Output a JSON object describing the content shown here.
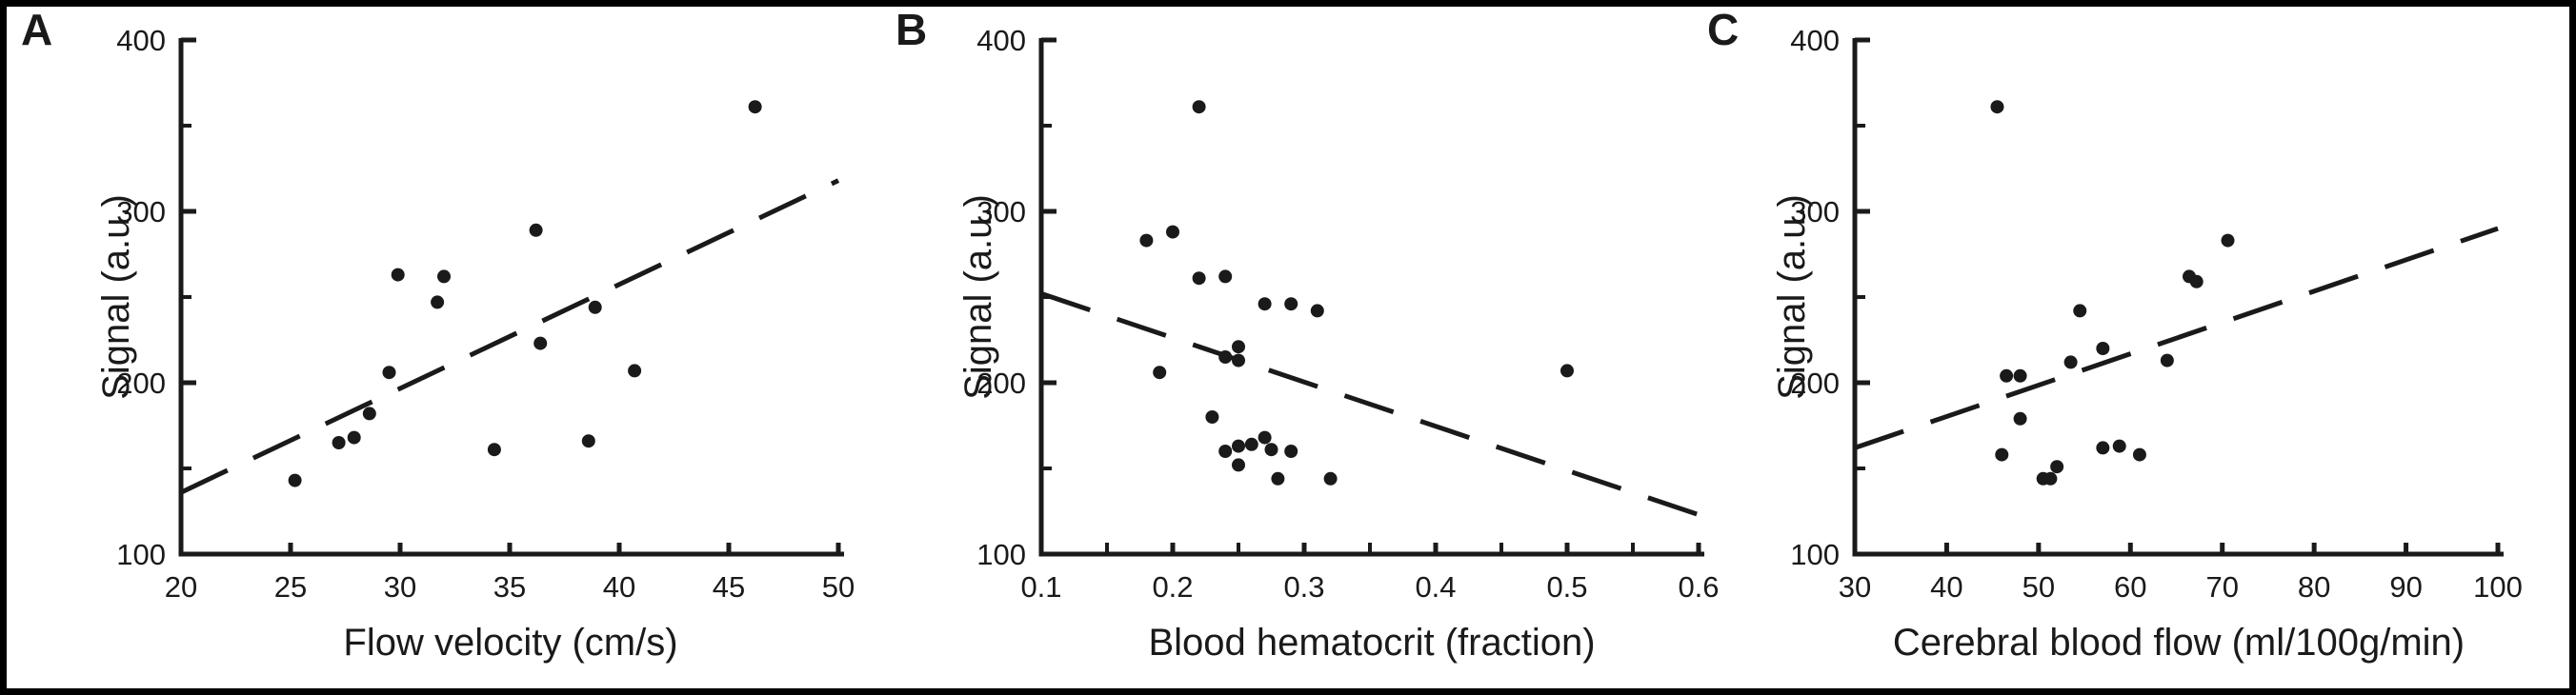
{
  "figure": {
    "bg": "#ffffff",
    "ink": "#1a1a1a",
    "border_color": "#000000",
    "panel_letters": [
      "A",
      "B",
      "C"
    ]
  },
  "chart_data": [
    {
      "type": "scatter",
      "panel": "A",
      "title": "",
      "xlabel": "Flow velocity (cm/s)",
      "ylabel": "Signal (a.u.)",
      "xlim": [
        20,
        50
      ],
      "ylim": [
        100,
        400
      ],
      "xticks": [
        20,
        25,
        30,
        35,
        40,
        45,
        50
      ],
      "xtick_labels": [
        "20",
        "25",
        "30",
        "35",
        "40",
        "45",
        "50"
      ],
      "x_minor_ticks": [],
      "yticks": [
        100,
        200,
        300,
        400
      ],
      "ytick_labels": [
        "100",
        "200",
        "300",
        "400"
      ],
      "y_minor_ticks": [
        150,
        250,
        350
      ],
      "grid": false,
      "legend": null,
      "marker": "filled-black-circle",
      "points": [
        [
          25.2,
          143
        ],
        [
          27.2,
          165
        ],
        [
          27.9,
          168
        ],
        [
          28.6,
          182
        ],
        [
          29.5,
          206
        ],
        [
          29.9,
          263
        ],
        [
          31.7,
          247
        ],
        [
          32.0,
          262
        ],
        [
          34.3,
          161
        ],
        [
          36.2,
          289
        ],
        [
          36.4,
          223
        ],
        [
          38.6,
          166
        ],
        [
          38.9,
          244
        ],
        [
          40.7,
          207
        ],
        [
          46.2,
          361
        ]
      ],
      "trendline": {
        "style": "dashed",
        "x1": 20,
        "y1": 136,
        "x2": 50,
        "y2": 318
      }
    },
    {
      "type": "scatter",
      "panel": "B",
      "title": "",
      "xlabel": "Blood hematocrit (fraction)",
      "ylabel": "Signal (a.u.)",
      "xlim": [
        0.1,
        0.6
      ],
      "ylim": [
        100,
        400
      ],
      "xticks": [
        0.1,
        0.2,
        0.3,
        0.4,
        0.5,
        0.6
      ],
      "xtick_labels": [
        "0.1",
        "0.2",
        "0.3",
        "0.4",
        "0.5",
        "0.6"
      ],
      "x_minor_ticks": [
        0.15,
        0.25,
        0.35,
        0.45,
        0.55
      ],
      "yticks": [
        100,
        200,
        300,
        400
      ],
      "ytick_labels": [
        "100",
        "200",
        "300",
        "400"
      ],
      "y_minor_ticks": [
        150,
        250,
        350
      ],
      "grid": false,
      "legend": null,
      "marker": "filled-black-circle",
      "points": [
        [
          0.18,
          283
        ],
        [
          0.2,
          288
        ],
        [
          0.22,
          361
        ],
        [
          0.22,
          261
        ],
        [
          0.24,
          262
        ],
        [
          0.27,
          246
        ],
        [
          0.29,
          246
        ],
        [
          0.31,
          242
        ],
        [
          0.19,
          206
        ],
        [
          0.24,
          215
        ],
        [
          0.25,
          221
        ],
        [
          0.25,
          213
        ],
        [
          0.23,
          180
        ],
        [
          0.5,
          207
        ],
        [
          0.24,
          160
        ],
        [
          0.25,
          163
        ],
        [
          0.25,
          152
        ],
        [
          0.26,
          164
        ],
        [
          0.27,
          168
        ],
        [
          0.275,
          161
        ],
        [
          0.29,
          160
        ],
        [
          0.28,
          144
        ],
        [
          0.32,
          144
        ]
      ],
      "trendline": {
        "style": "dashed",
        "x1": 0.1,
        "y1": 252,
        "x2": 0.6,
        "y2": 123
      }
    },
    {
      "type": "scatter",
      "panel": "C",
      "title": "",
      "xlabel": "Cerebral blood flow (ml/100g/min)",
      "ylabel": "Signal (a.u.)",
      "xlim": [
        30,
        100
      ],
      "ylim": [
        100,
        400
      ],
      "xticks": [
        30,
        40,
        50,
        60,
        70,
        80,
        90,
        100
      ],
      "xtick_labels": [
        "30",
        "40",
        "50",
        "60",
        "70",
        "80",
        "90",
        "100"
      ],
      "x_minor_ticks": [],
      "yticks": [
        100,
        200,
        300,
        400
      ],
      "ytick_labels": [
        "100",
        "200",
        "300",
        "400"
      ],
      "y_minor_ticks": [
        150,
        250,
        350
      ],
      "grid": false,
      "legend": null,
      "marker": "filled-black-circle",
      "points": [
        [
          45.5,
          361
        ],
        [
          46.5,
          204
        ],
        [
          48.0,
          204
        ],
        [
          48.0,
          179
        ],
        [
          46.0,
          158
        ],
        [
          50.5,
          144
        ],
        [
          51.3,
          144
        ],
        [
          52.0,
          151
        ],
        [
          53.5,
          212
        ],
        [
          54.5,
          242
        ],
        [
          57.0,
          220
        ],
        [
          57.0,
          162
        ],
        [
          58.8,
          163
        ],
        [
          61.0,
          158
        ],
        [
          64.0,
          213
        ],
        [
          66.4,
          262
        ],
        [
          67.2,
          259
        ],
        [
          70.6,
          283
        ]
      ],
      "trendline": {
        "style": "dashed",
        "x1": 30,
        "y1": 162,
        "x2": 100,
        "y2": 290
      }
    }
  ]
}
